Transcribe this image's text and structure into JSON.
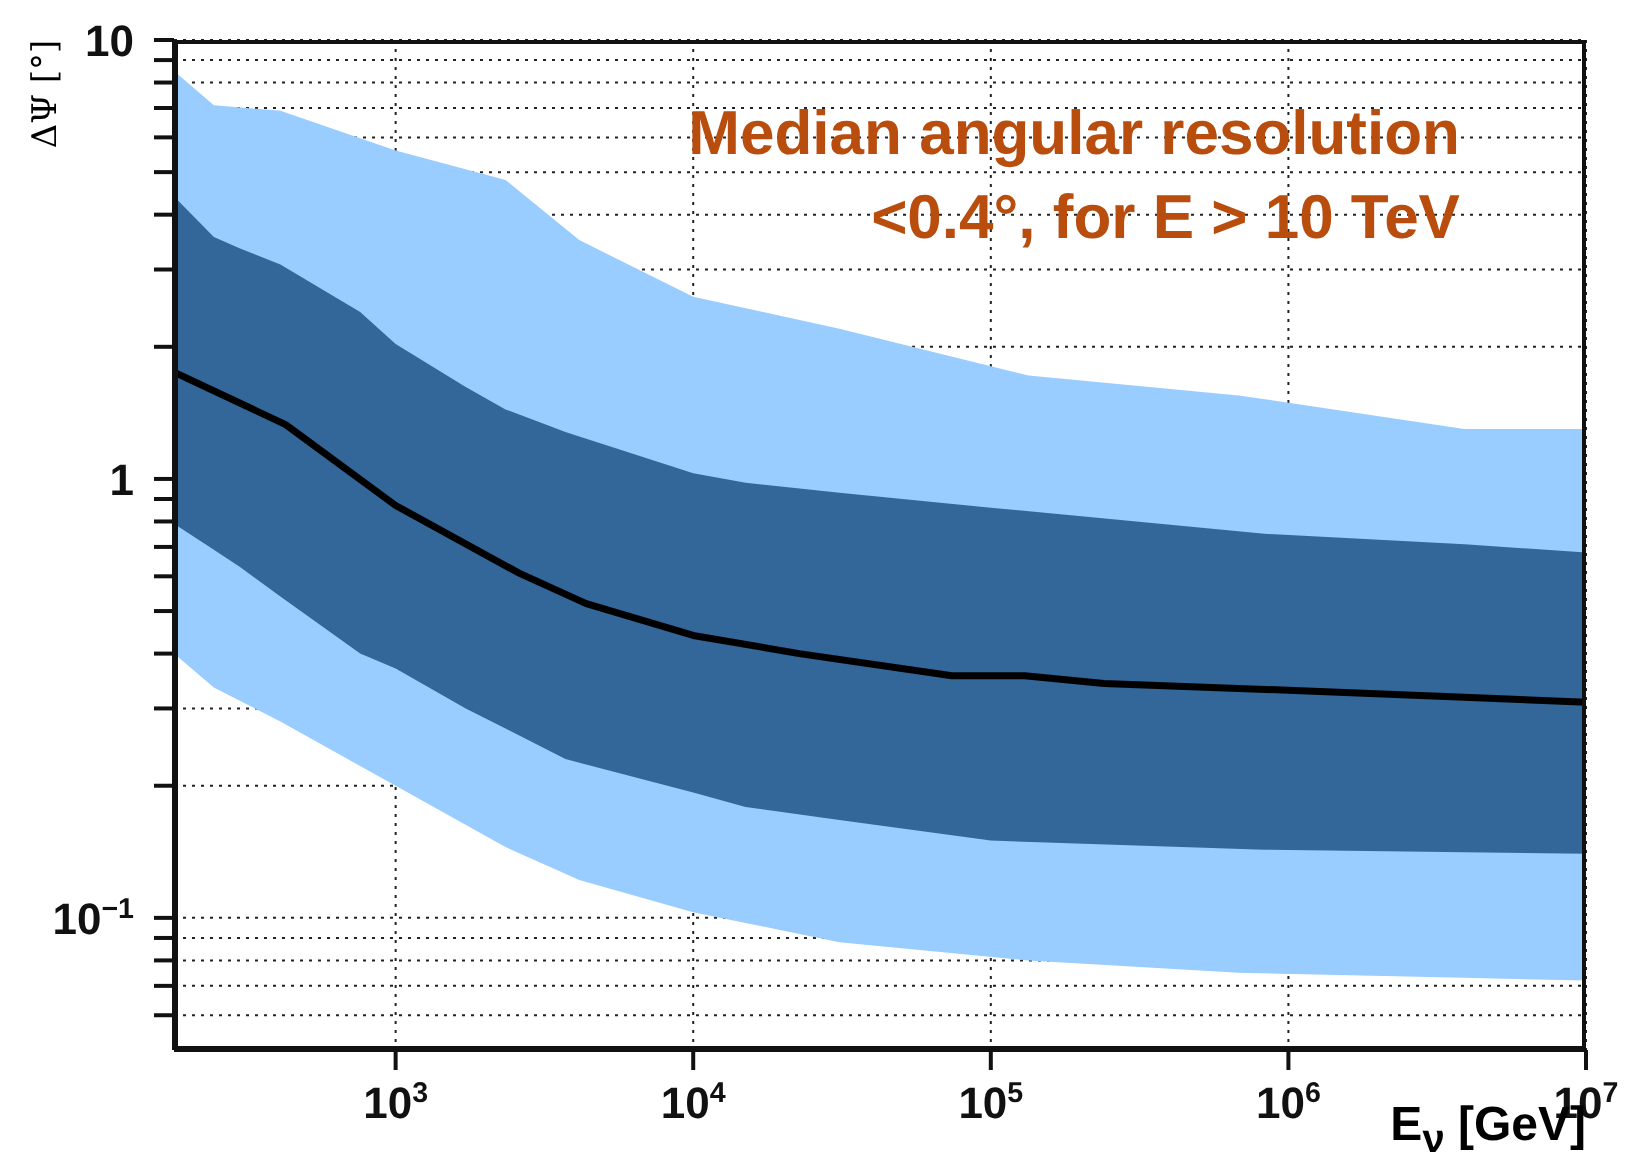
{
  "chart_data": {
    "type": "line",
    "xlabel": "E$_{ν}$ [GeV]",
    "ylabel": "ΔΨ [°]",
    "annotations": [
      "Median angular resolution",
      "<0.4°, for E > 10 TeV"
    ],
    "log": "xy",
    "xlim": [
      180,
      10000000
    ],
    "ylim": [
      0.05,
      10
    ],
    "xticks": [
      {
        "value": 1000,
        "label": "10$^{3}$"
      },
      {
        "value": 10000,
        "label": "10$^{4}$"
      },
      {
        "value": 100000,
        "label": "10$^{5}$"
      },
      {
        "value": 1000000,
        "label": "10$^{6}$"
      },
      {
        "value": 10000000,
        "label": "10$^{7}$"
      }
    ],
    "yticks": [
      {
        "value": 0.06,
        "label": null
      },
      {
        "value": 0.07,
        "label": null
      },
      {
        "value": 0.08,
        "label": null
      },
      {
        "value": 0.09,
        "label": null
      },
      {
        "value": 0.1,
        "label": "10$^{−1}$"
      },
      {
        "value": 0.2,
        "label": null
      },
      {
        "value": 0.3,
        "label": null
      },
      {
        "value": 0.4,
        "label": null
      },
      {
        "value": 0.5,
        "label": null
      },
      {
        "value": 0.6,
        "label": null
      },
      {
        "value": 0.7,
        "label": null
      },
      {
        "value": 0.8,
        "label": null
      },
      {
        "value": 0.9,
        "label": null
      },
      1,
      {
        "value": 2,
        "label": null
      },
      {
        "value": 3,
        "label": null
      },
      {
        "value": 4,
        "label": null
      },
      {
        "value": 5,
        "label": null
      },
      {
        "value": 6,
        "label": null
      },
      {
        "value": 7,
        "label": null
      },
      {
        "value": 8,
        "label": null
      },
      {
        "value": 9,
        "label": null
      },
      10
    ],
    "grid": true,
    "series": [
      {
        "type": "line",
        "color": "#99ccff",
        "x": [
          180,
          245,
          410,
          1000,
          2340,
          4140,
          10000,
          31000,
          134000,
          680000,
          3900000,
          10000000
        ],
        "values": [
          null,
          null,
          null,
          null,
          null,
          null,
          null,
          null,
          null,
          null,
          null,
          null
        ],
        "lower": [
          0.4,
          0.335,
          0.28,
          0.2,
          0.145,
          0.122,
          0.103,
          0.088,
          0.08,
          0.075,
          0.073,
          0.072
        ],
        "upper": [
          8.5,
          7.1,
          6.9,
          5.6,
          4.8,
          3.5,
          2.6,
          2.2,
          1.72,
          1.55,
          1.3,
          1.3
        ]
      },
      {
        "type": "line",
        "color": "#336699",
        "x": [
          180,
          245,
          300,
          410,
          760,
          1000,
          1720,
          2340,
          3720,
          10000,
          15000,
          31000,
          100000,
          830000,
          3900000,
          10000000
        ],
        "values": [
          null,
          null,
          null,
          null,
          null,
          null,
          null,
          null,
          null,
          null,
          null,
          null,
          null,
          null,
          null,
          null
        ],
        "lower": [
          0.79,
          0.69,
          0.63,
          0.54,
          0.4,
          0.37,
          0.3,
          0.27,
          0.23,
          0.193,
          0.179,
          0.167,
          0.15,
          0.143,
          0.141,
          0.14
        ],
        "upper": [
          4.4,
          3.56,
          3.35,
          3.08,
          2.4,
          2.03,
          1.62,
          1.44,
          1.28,
          1.03,
          0.98,
          0.93,
          0.86,
          0.75,
          0.71,
          0.68
        ]
      },
      {
        "type": "line",
        "color": "#000000",
        "marker": "none",
        "line_style": "solid",
        "x": [
          180,
          427,
          1000,
          2600,
          4370,
          10000,
          22700,
          74000,
          130000,
          240000,
          1000000,
          3900000,
          10000000
        ],
        "values": [
          1.75,
          1.33,
          0.87,
          0.61,
          0.52,
          0.44,
          0.4,
          0.356,
          0.356,
          0.342,
          0.33,
          0.318,
          0.31
        ]
      }
    ]
  }
}
